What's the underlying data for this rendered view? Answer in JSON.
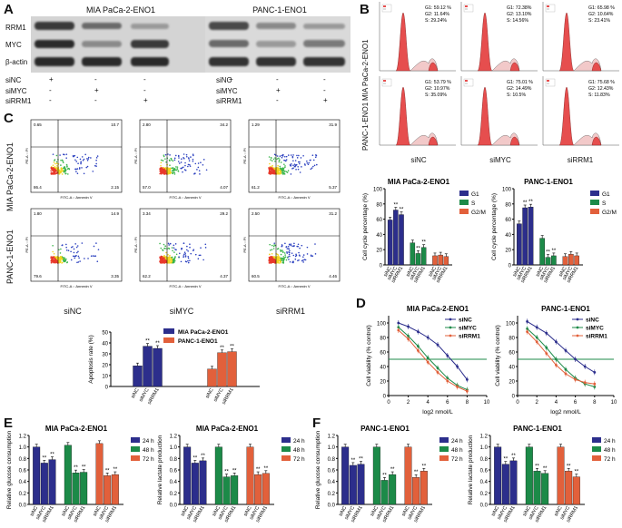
{
  "panels": {
    "A": "A",
    "B": "B",
    "C": "C",
    "D": "D",
    "E": "E",
    "F": "F"
  },
  "panelA": {
    "titles": [
      "MIA PaCa-2-ENO1",
      "PANC-1-ENO1"
    ],
    "rows": [
      "RRM1",
      "MYC",
      "β-actin"
    ],
    "cond_labels": [
      "siNC",
      "siMYC",
      "siRRM1"
    ],
    "lanes": [
      [
        "+",
        "-",
        "-"
      ],
      [
        "-",
        "+",
        "-"
      ],
      [
        "-",
        "-",
        "+"
      ]
    ]
  },
  "panelB": {
    "row_labels": [
      "MIA PaCa-2-ENO1",
      "PANC-1-ENO1"
    ],
    "col_labels": [
      "siNC",
      "siMYC",
      "siRRM1"
    ],
    "stats": [
      [
        "G1: 59.12 %\nG2: 11.64%\nS: 29.24%",
        "G1: 72.38%\nG2: 13.10%\nS: 14.56%",
        "G1: 65.98 %\nG2: 10.64%\nS: 23.41%"
      ],
      [
        "G1: 53.79 %\nG2: 10.97%\nS: 35.09%",
        "G1: 75.01 %\nG2: 14.49%\nS: 10.5%",
        "G1: 75.68 %\nG2: 12.43%\nS: 11.83%"
      ]
    ]
  },
  "panelC": {
    "row_labels": [
      "MIA PaCa-2-ENO1",
      "PANC-1-ENO1"
    ],
    "col_labels": [
      "siNC",
      "siMYC",
      "siRRM1"
    ],
    "quads": [
      [
        [
          "0.65",
          "10.7",
          "86.4",
          "2.15"
        ],
        [
          "2.80",
          "34.2",
          "57.0",
          "4.07"
        ],
        [
          "1.29",
          "31.9",
          "61.2",
          "5.37"
        ]
      ],
      [
        [
          "1.80",
          "14.9",
          "79.6",
          "3.35"
        ],
        [
          "3.34",
          "29.2",
          "62.2",
          "4.37"
        ],
        [
          "2.50",
          "31.2",
          "60.5",
          "4.46"
        ]
      ]
    ],
    "xaxis": "FITC-A :: Annexin V",
    "yaxis": "PE-A :: PI"
  },
  "chart_data": [
    {
      "id": "B-bar-1",
      "type": "bar",
      "title": "MIA PaCa-2-ENO1",
      "ylabel": "Cell cycle percentage (%)",
      "ylim": [
        0,
        100
      ],
      "yticks": [
        "0",
        "20",
        "40",
        "60",
        "80",
        "100"
      ],
      "categories": [
        "siNC",
        "siMYC",
        "siRRM1"
      ],
      "series": [
        {
          "name": "G1",
          "values": [
            59,
            72,
            66
          ],
          "color": "#2c2e8c"
        },
        {
          "name": "S",
          "values": [
            29,
            15,
            23
          ],
          "color": "#1c8a48"
        },
        {
          "name": "G2/M",
          "values": [
            12,
            13,
            11
          ],
          "color": "#e2603b"
        }
      ],
      "annot": [
        [
          "",
          "**",
          "**"
        ],
        [
          "",
          "**",
          "**"
        ],
        [
          "",
          "",
          ""
        ]
      ]
    },
    {
      "id": "B-bar-2",
      "type": "bar",
      "title": "PANC-1-ENO1",
      "ylabel": "Cell cycle percentage (%)",
      "ylim": [
        0,
        100
      ],
      "yticks": [
        "0",
        "20",
        "40",
        "60",
        "80",
        "100"
      ],
      "categories": [
        "siNC",
        "siMYC",
        "siRRM1"
      ],
      "series": [
        {
          "name": "G1",
          "values": [
            54,
            75,
            76
          ],
          "color": "#2c2e8c"
        },
        {
          "name": "S",
          "values": [
            35,
            10,
            12
          ],
          "color": "#1c8a48"
        },
        {
          "name": "G2/M",
          "values": [
            11,
            14,
            12
          ],
          "color": "#e2603b"
        }
      ],
      "annot": [
        [
          "",
          "**",
          "**"
        ],
        [
          "",
          "**",
          "**"
        ],
        [
          "",
          "",
          ""
        ]
      ]
    },
    {
      "id": "C-bar",
      "type": "bar",
      "ylabel": "Apoptosis rate (%)",
      "ylim": [
        0,
        50
      ],
      "yticks": [
        "0",
        "10",
        "20",
        "30",
        "40",
        "50"
      ],
      "categories": [
        "siNC",
        "siMYC",
        "siRRM1"
      ],
      "series": [
        {
          "name": "MIA PaCa-2-ENO1",
          "values": [
            19,
            37,
            35
          ],
          "color": "#2c2e8c"
        },
        {
          "name": "PANC-1-ENO1",
          "values": [
            16,
            31,
            32
          ],
          "color": "#e2603b"
        }
      ],
      "annot": [
        [
          "",
          "**",
          "**"
        ],
        [
          "",
          "**",
          "**"
        ]
      ]
    },
    {
      "id": "D-line-1",
      "type": "line",
      "title": "MIA PaCa-2-ENO1",
      "xlabel": "log2 nmol/L",
      "ylabel": "Cell viability (% control)",
      "xlim": [
        0,
        10
      ],
      "ylim": [
        0,
        110
      ],
      "xticks": [
        "0",
        "2",
        "4",
        "6",
        "8",
        "10"
      ],
      "yticks": [
        "0",
        "20",
        "40",
        "60",
        "80",
        "100"
      ],
      "x": [
        1,
        2,
        3,
        4,
        5,
        6,
        7,
        8
      ],
      "series": [
        {
          "name": "siNC",
          "values": [
            100,
            95,
            88,
            80,
            70,
            55,
            40,
            22
          ],
          "color": "#2c2e8c"
        },
        {
          "name": "siMYC",
          "values": [
            94,
            82,
            68,
            52,
            38,
            24,
            14,
            8
          ],
          "color": "#1c8a48"
        },
        {
          "name": "siRRM1",
          "values": [
            90,
            78,
            62,
            46,
            32,
            20,
            12,
            6
          ],
          "color": "#e2603b"
        }
      ],
      "hline": 50
    },
    {
      "id": "D-line-2",
      "type": "line",
      "title": "PANC-1-ENO1",
      "xlabel": "log2 nmol/L",
      "ylabel": "Cell viability (% control)",
      "xlim": [
        0,
        10
      ],
      "ylim": [
        0,
        110
      ],
      "xticks": [
        "0",
        "2",
        "4",
        "6",
        "8",
        "10"
      ],
      "yticks": [
        "0",
        "20",
        "40",
        "60",
        "80",
        "100"
      ],
      "x": [
        1,
        2,
        3,
        4,
        5,
        6,
        7,
        8
      ],
      "series": [
        {
          "name": "siNC",
          "values": [
            102,
            94,
            86,
            74,
            62,
            50,
            40,
            32
          ],
          "color": "#2c2e8c"
        },
        {
          "name": "siMYC",
          "values": [
            92,
            80,
            66,
            50,
            36,
            24,
            16,
            12
          ],
          "color": "#1c8a48"
        },
        {
          "name": "siRRM1",
          "values": [
            88,
            74,
            58,
            42,
            30,
            22,
            18,
            16
          ],
          "color": "#e2603b"
        }
      ],
      "hline": 50
    },
    {
      "id": "E-bar-1",
      "type": "bar",
      "title": "MIA PaCa-2-ENO1",
      "ylabel": "Relative glucose consumption",
      "ylim": [
        0,
        1.2
      ],
      "yticks": [
        "0.0",
        "0.2",
        "0.4",
        "0.6",
        "0.8",
        "1.0",
        "1.2"
      ],
      "categories": [
        "siNC",
        "siMYC",
        "siRRM1"
      ],
      "series": [
        {
          "name": "24 h",
          "values": [
            1.0,
            0.72,
            0.78
          ],
          "color": "#2c2e8c"
        },
        {
          "name": "48 h",
          "values": [
            1.03,
            0.55,
            0.56
          ],
          "color": "#1c8a48"
        },
        {
          "name": "72 h",
          "values": [
            1.06,
            0.5,
            0.52
          ],
          "color": "#e2603b"
        }
      ],
      "annot": [
        [
          "",
          "**",
          "**"
        ],
        [
          "",
          "**",
          "**"
        ],
        [
          "",
          "**",
          "**"
        ]
      ]
    },
    {
      "id": "E-bar-2",
      "type": "bar",
      "title": "MIA PaCa-2-ENO1",
      "ylabel": "Relative lactate production",
      "ylim": [
        0,
        1.2
      ],
      "yticks": [
        "0.0",
        "0.2",
        "0.4",
        "0.6",
        "0.8",
        "1.0",
        "1.2"
      ],
      "categories": [
        "siNC",
        "siMYC",
        "siRRM1"
      ],
      "series": [
        {
          "name": "24 h",
          "values": [
            1.0,
            0.72,
            0.76
          ],
          "color": "#2c2e8c"
        },
        {
          "name": "48 h",
          "values": [
            1.0,
            0.48,
            0.5
          ],
          "color": "#1c8a48"
        },
        {
          "name": "72 h",
          "values": [
            1.0,
            0.52,
            0.54
          ],
          "color": "#e2603b"
        }
      ],
      "annot": [
        [
          "",
          "**",
          "**"
        ],
        [
          "",
          "**",
          "**"
        ],
        [
          "",
          "**",
          "**"
        ]
      ]
    },
    {
      "id": "F-bar-1",
      "type": "bar",
      "title": "PANC-1-ENO1",
      "ylabel": "Relative glucose consumption",
      "ylim": [
        0,
        1.2
      ],
      "yticks": [
        "0.0",
        "0.2",
        "0.4",
        "0.6",
        "0.8",
        "1.0",
        "1.2"
      ],
      "categories": [
        "siNC",
        "siMYC",
        "siRRM1"
      ],
      "series": [
        {
          "name": "24 h",
          "values": [
            1.0,
            0.68,
            0.7
          ],
          "color": "#2c2e8c"
        },
        {
          "name": "48 h",
          "values": [
            1.0,
            0.42,
            0.52
          ],
          "color": "#1c8a48"
        },
        {
          "name": "72 h",
          "values": [
            1.0,
            0.47,
            0.58
          ],
          "color": "#e2603b"
        }
      ],
      "annot": [
        [
          "",
          "**",
          "**"
        ],
        [
          "",
          "**",
          "**"
        ],
        [
          "",
          "**",
          "**"
        ]
      ]
    },
    {
      "id": "F-bar-2",
      "type": "bar",
      "title": "PANC-1-ENO1",
      "ylabel": "Relative lactate production",
      "ylim": [
        0,
        1.2
      ],
      "yticks": [
        "0.0",
        "0.2",
        "0.4",
        "0.6",
        "0.8",
        "1.0",
        "1.2"
      ],
      "categories": [
        "siNC",
        "siMYC",
        "siRRM1"
      ],
      "series": [
        {
          "name": "24 h",
          "values": [
            1.0,
            0.7,
            0.76
          ],
          "color": "#2c2e8c"
        },
        {
          "name": "48 h",
          "values": [
            1.0,
            0.58,
            0.54
          ],
          "color": "#1c8a48"
        },
        {
          "name": "72 h",
          "values": [
            1.0,
            0.58,
            0.48
          ],
          "color": "#e2603b"
        }
      ],
      "annot": [
        [
          "",
          "**",
          "**"
        ],
        [
          "",
          "**",
          "**"
        ],
        [
          "",
          "**",
          "**"
        ]
      ]
    }
  ]
}
